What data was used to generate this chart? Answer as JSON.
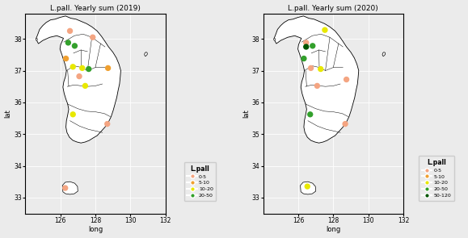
{
  "title_2019": "L.pall. Yearly sum (2019)",
  "title_2020": "L.pall. Yearly sum (2020)",
  "xlabel": "long",
  "ylabel": "lat",
  "xlim": [
    124,
    132
  ],
  "ylim": [
    32.5,
    38.8
  ],
  "xticks": [
    126,
    128,
    130,
    132
  ],
  "yticks": [
    33,
    34,
    35,
    36,
    37,
    38
  ],
  "background_color": "#EBEBEB",
  "cat_colors": {
    "0-5": "#F4A582",
    "5-10": "#F0A030",
    "10-20": "#E8E800",
    "20-50": "#33A02C",
    "50-120": "#005500"
  },
  "points_2019": [
    {
      "lon": 126.55,
      "lat": 38.25,
      "cat": "0-5"
    },
    {
      "lon": 127.85,
      "lat": 38.05,
      "cat": "0-5"
    },
    {
      "lon": 126.45,
      "lat": 37.88,
      "cat": "20-50"
    },
    {
      "lon": 126.82,
      "lat": 37.78,
      "cat": "20-50"
    },
    {
      "lon": 126.32,
      "lat": 37.38,
      "cat": "5-10"
    },
    {
      "lon": 126.72,
      "lat": 37.12,
      "cat": "10-20"
    },
    {
      "lon": 127.25,
      "lat": 37.08,
      "cat": "10-20"
    },
    {
      "lon": 127.62,
      "lat": 37.05,
      "cat": "20-50"
    },
    {
      "lon": 128.72,
      "lat": 37.08,
      "cat": "5-10"
    },
    {
      "lon": 127.08,
      "lat": 36.82,
      "cat": "0-5"
    },
    {
      "lon": 127.42,
      "lat": 36.52,
      "cat": "10-20"
    },
    {
      "lon": 126.72,
      "lat": 35.62,
      "cat": "10-20"
    },
    {
      "lon": 128.68,
      "lat": 35.32,
      "cat": "0-5"
    },
    {
      "lon": 126.28,
      "lat": 33.3,
      "cat": "0-5"
    }
  ],
  "points_2020": [
    {
      "lon": 127.52,
      "lat": 38.28,
      "cat": "10-20"
    },
    {
      "lon": 126.45,
      "lat": 37.88,
      "cat": "0-5"
    },
    {
      "lon": 126.45,
      "lat": 37.75,
      "cat": "50-120"
    },
    {
      "lon": 126.82,
      "lat": 37.78,
      "cat": "20-50"
    },
    {
      "lon": 126.32,
      "lat": 37.38,
      "cat": "20-50"
    },
    {
      "lon": 126.72,
      "lat": 37.08,
      "cat": "0-5"
    },
    {
      "lon": 127.28,
      "lat": 37.05,
      "cat": "10-20"
    },
    {
      "lon": 128.75,
      "lat": 36.72,
      "cat": "0-5"
    },
    {
      "lon": 127.08,
      "lat": 36.52,
      "cat": "0-5"
    },
    {
      "lon": 126.68,
      "lat": 35.62,
      "cat": "20-50"
    },
    {
      "lon": 128.68,
      "lat": 35.32,
      "cat": "0-5"
    },
    {
      "lon": 126.52,
      "lat": 33.35,
      "cat": "10-20"
    }
  ],
  "legend_cats_2019": [
    "0-5",
    "5-10",
    "10-20",
    "20-50"
  ],
  "legend_cats_2020": [
    "0-5",
    "5-10",
    "10-20",
    "20-50",
    "50-120"
  ],
  "point_size": 28
}
